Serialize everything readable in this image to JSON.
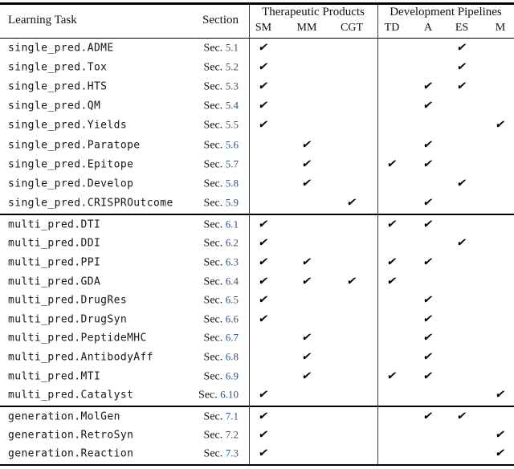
{
  "table": {
    "header": {
      "task_col": "Learning Task",
      "section_col": "Section",
      "col_groups": [
        {
          "label": "Therapeutic Products",
          "columns": [
            "SM",
            "MM",
            "CGT"
          ]
        },
        {
          "label": "Development Pipelines",
          "columns": [
            "TD",
            "A",
            "ES",
            "M"
          ]
        }
      ]
    },
    "section_prefix": "Sec.",
    "check_glyph": "✔",
    "colors": {
      "section_number_blue": "#2e537f",
      "rule_black": "#000000",
      "divider_gray": "#3f3f3f"
    },
    "groups": [
      {
        "rows": [
          {
            "task": "single_pred.ADME",
            "sec": "5.1",
            "checks": [
              "SM",
              "ES"
            ]
          },
          {
            "task": "single_pred.Tox",
            "sec": "5.2",
            "checks": [
              "SM",
              "ES"
            ]
          },
          {
            "task": "single_pred.HTS",
            "sec": "5.3",
            "checks": [
              "SM",
              "A",
              "ES"
            ]
          },
          {
            "task": "single_pred.QM",
            "sec": "5.4",
            "checks": [
              "SM",
              "A"
            ]
          },
          {
            "task": "single_pred.Yields",
            "sec": "5.5",
            "checks": [
              "SM",
              "M"
            ]
          },
          {
            "task": "single_pred.Paratope",
            "sec": "5.6",
            "checks": [
              "MM",
              "A"
            ]
          },
          {
            "task": "single_pred.Epitope",
            "sec": "5.7",
            "checks": [
              "MM",
              "TD",
              "A"
            ]
          },
          {
            "task": "single_pred.Develop",
            "sec": "5.8",
            "checks": [
              "MM",
              "ES"
            ]
          },
          {
            "task": "single_pred.CRISPROutcome",
            "sec": "5.9",
            "checks": [
              "CGT",
              "A"
            ]
          }
        ]
      },
      {
        "rows": [
          {
            "task": "multi_pred.DTI",
            "sec": "6.1",
            "checks": [
              "SM",
              "TD",
              "A"
            ]
          },
          {
            "task": "multi_pred.DDI",
            "sec": "6.2",
            "checks": [
              "SM",
              "ES"
            ]
          },
          {
            "task": "multi_pred.PPI",
            "sec": "6.3",
            "checks": [
              "SM",
              "MM",
              "TD",
              "A"
            ]
          },
          {
            "task": "multi_pred.GDA",
            "sec": "6.4",
            "checks": [
              "SM",
              "MM",
              "CGT",
              "TD"
            ]
          },
          {
            "task": "multi_pred.DrugRes",
            "sec": "6.5",
            "checks": [
              "SM",
              "A"
            ]
          },
          {
            "task": "multi_pred.DrugSyn",
            "sec": "6.6",
            "checks": [
              "SM",
              "A"
            ]
          },
          {
            "task": "multi_pred.PeptideMHC",
            "sec": "6.7",
            "checks": [
              "MM",
              "A"
            ]
          },
          {
            "task": "multi_pred.AntibodyAff",
            "sec": "6.8",
            "checks": [
              "MM",
              "A"
            ]
          },
          {
            "task": "multi_pred.MTI",
            "sec": "6.9",
            "checks": [
              "MM",
              "TD",
              "A"
            ]
          },
          {
            "task": "multi_pred.Catalyst",
            "sec": "6.10",
            "checks": [
              "SM",
              "M"
            ]
          }
        ]
      },
      {
        "rows": [
          {
            "task": "generation.MolGen",
            "sec": "7.1",
            "checks": [
              "SM",
              "A",
              "ES"
            ]
          },
          {
            "task": "generation.RetroSyn",
            "sec": "7.2",
            "checks": [
              "SM",
              "M"
            ]
          },
          {
            "task": "generation.Reaction",
            "sec": "7.3",
            "checks": [
              "SM",
              "M"
            ]
          }
        ]
      }
    ]
  }
}
